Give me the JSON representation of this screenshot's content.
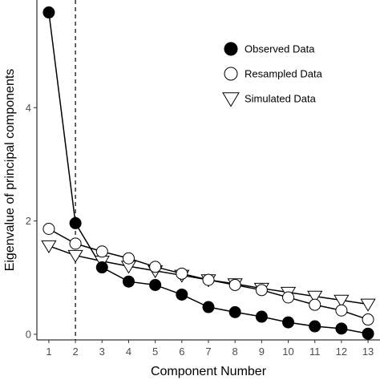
{
  "chart_data": {
    "type": "scatter",
    "xlabel": "Component Number",
    "ylabel": "Eigenvalue of principal components",
    "xlim": [
      0.55,
      13.45
    ],
    "ylim": [
      -0.1,
      5.9
    ],
    "x_ticks": [
      1,
      2,
      3,
      4,
      5,
      6,
      7,
      8,
      9,
      10,
      11,
      12,
      13
    ],
    "y_ticks": [
      0,
      2,
      4
    ],
    "reference_line_x": 2,
    "grid": false,
    "legend_position": "top-right",
    "x": [
      1,
      2,
      3,
      4,
      5,
      6,
      7,
      8,
      9,
      10,
      11,
      12,
      13
    ],
    "series": [
      {
        "name": "Observed Data",
        "marker": "filled-circle",
        "values": [
          5.68,
          1.96,
          1.18,
          0.93,
          0.87,
          0.7,
          0.48,
          0.39,
          0.31,
          0.21,
          0.14,
          0.1,
          0.01
        ]
      },
      {
        "name": "Resampled Data",
        "marker": "open-circle",
        "values": [
          1.86,
          1.6,
          1.46,
          1.34,
          1.19,
          1.07,
          0.96,
          0.87,
          0.78,
          0.65,
          0.52,
          0.42,
          0.26
        ]
      },
      {
        "name": "Simulated Data",
        "marker": "open-triangle",
        "values": [
          1.56,
          1.39,
          1.29,
          1.2,
          1.12,
          1.04,
          0.96,
          0.89,
          0.81,
          0.74,
          0.67,
          0.6,
          0.53
        ]
      }
    ]
  },
  "colors": {
    "marker": "#000000",
    "background": "#ffffff",
    "tick_text": "#4d4d4d"
  }
}
